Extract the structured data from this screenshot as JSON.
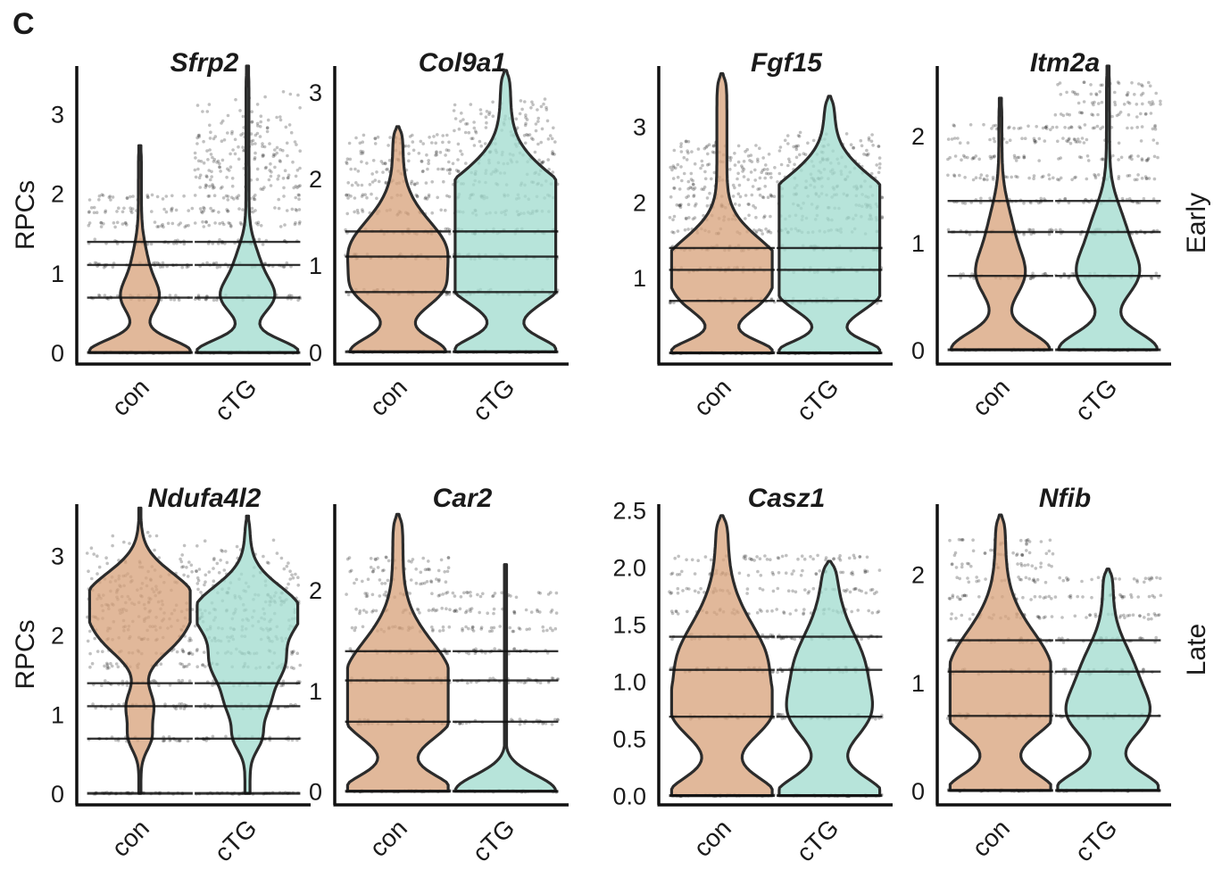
{
  "figure": {
    "panel_label": "C",
    "row_labels": [
      "Early",
      "Late"
    ],
    "ylabel": "RPCs",
    "group_colors": {
      "con": "#d9a47e",
      "cTG": "#a3dcd0"
    }
  },
  "chart_data": [
    {
      "type": "violin",
      "title": "Sfrp2",
      "row": "Early",
      "ylabel": "RPCs",
      "categories": [
        "con",
        "cTG"
      ],
      "ylim": [
        -0.1,
        3.6
      ],
      "yticks": [
        0,
        1,
        2,
        3
      ],
      "ytick_labels": [
        "0",
        "1",
        "2",
        "3"
      ],
      "series": [
        {
          "name": "con",
          "levels": [
            0,
            0.69,
            1.1,
            1.39,
            1.61,
            1.79,
            1.95
          ],
          "bulge_y": [
            0,
            0.69,
            1.1
          ],
          "bulge_w": [
            1.0,
            0.32,
            0.12
          ],
          "base_w": 0.03,
          "max": 2.6
        },
        {
          "name": "cTG",
          "levels": [
            0,
            0.69,
            1.1,
            1.39,
            1.61,
            1.79,
            1.95,
            2.08,
            2.2,
            2.3,
            2.4,
            2.48,
            2.56,
            2.64,
            2.71,
            2.77,
            2.83,
            2.89,
            2.94,
            3.0,
            3.04,
            3.09,
            3.14,
            3.18,
            3.22,
            3.26
          ],
          "bulge_y": [
            0,
            0.69,
            1.1
          ],
          "bulge_w": [
            1.0,
            0.45,
            0.2
          ],
          "base_w": 0.03,
          "max": 3.6
        }
      ]
    },
    {
      "type": "violin",
      "title": "Col9a1",
      "row": "Early",
      "ylabel": "",
      "categories": [
        "con",
        "cTG"
      ],
      "ylim": [
        -0.1,
        3.3
      ],
      "yticks": [
        0,
        1,
        2,
        3
      ],
      "ytick_labels": [
        "0",
        "1",
        "2",
        "3"
      ],
      "series": [
        {
          "name": "con",
          "levels": [
            0,
            0.69,
            1.1,
            1.39,
            1.61,
            1.79,
            1.95,
            2.08,
            2.2,
            2.3,
            2.4,
            2.48
          ],
          "bulge_y": [
            0,
            0.69,
            1.1,
            1.39
          ],
          "bulge_w": [
            0.85,
            0.6,
            0.55,
            0.4
          ],
          "base_w": 0.1,
          "max": 2.6
        },
        {
          "name": "cTG",
          "levels": [
            0,
            0.69,
            1.1,
            1.39,
            1.61,
            1.79,
            1.95,
            2.08,
            2.2,
            2.3,
            2.4,
            2.48,
            2.56,
            2.64,
            2.71,
            2.77,
            2.83,
            2.89
          ],
          "bulge_y": [
            0,
            0.69,
            1.1,
            1.39,
            1.79
          ],
          "bulge_w": [
            0.95,
            0.6,
            0.85,
            1.0,
            0.9
          ],
          "base_w": 0.1,
          "max": 3.25
        }
      ]
    },
    {
      "type": "violin",
      "title": "Fgf15",
      "row": "Early",
      "ylabel": "",
      "categories": [
        "con",
        "cTG"
      ],
      "ylim": [
        -0.1,
        3.8
      ],
      "yticks": [
        1,
        2,
        3
      ],
      "ytick_labels": [
        "1",
        "2",
        "3"
      ],
      "series": [
        {
          "name": "con",
          "levels": [
            0,
            0.69,
            1.1,
            1.39,
            1.61,
            1.79,
            1.95,
            2.08,
            2.2,
            2.3,
            2.4,
            2.48,
            2.56,
            2.64,
            2.71,
            2.77
          ],
          "bulge_y": [
            0,
            0.69,
            1.1,
            1.39
          ],
          "bulge_w": [
            0.95,
            0.5,
            0.65,
            0.5
          ],
          "base_w": 0.1,
          "max": 3.7
        },
        {
          "name": "cTG",
          "levels": [
            0,
            0.69,
            1.1,
            1.39,
            1.61,
            1.79,
            1.95,
            2.08,
            2.2,
            2.3,
            2.4,
            2.48,
            2.56,
            2.64,
            2.71,
            2.77,
            2.83,
            2.89
          ],
          "bulge_y": [
            0,
            0.69,
            1.1,
            1.61,
            2.08
          ],
          "bulge_w": [
            0.95,
            0.55,
            0.9,
            1.0,
            0.85
          ],
          "base_w": 0.1,
          "max": 3.4
        }
      ]
    },
    {
      "type": "violin",
      "title": "Itm2a",
      "row": "Early",
      "ylabel": "",
      "categories": [
        "con",
        "cTG"
      ],
      "ylim": [
        -0.1,
        2.65
      ],
      "yticks": [
        0,
        1,
        2
      ],
      "ytick_labels": [
        "0",
        "1",
        "2"
      ],
      "series": [
        {
          "name": "con",
          "levels": [
            0,
            0.69,
            1.1,
            1.39,
            1.61,
            1.79,
            1.95,
            2.08
          ],
          "bulge_y": [
            0,
            0.69,
            1.1
          ],
          "bulge_w": [
            0.95,
            0.4,
            0.2
          ],
          "base_w": 0.03,
          "max": 2.35
        },
        {
          "name": "cTG",
          "levels": [
            0,
            0.69,
            1.1,
            1.39,
            1.61,
            1.79,
            1.95,
            2.08,
            2.2,
            2.3,
            2.4,
            2.48
          ],
          "bulge_y": [
            0,
            0.69,
            1.1
          ],
          "bulge_w": [
            0.95,
            0.5,
            0.3
          ],
          "base_w": 0.03,
          "max": 2.65
        }
      ]
    },
    {
      "type": "violin",
      "title": "Ndufa4l2",
      "row": "Late",
      "ylabel": "RPCs",
      "categories": [
        "con",
        "cTG"
      ],
      "ylim": [
        -0.1,
        3.65
      ],
      "yticks": [
        0,
        1,
        2,
        3
      ],
      "ytick_labels": [
        "0",
        "1",
        "2",
        "3"
      ],
      "series": [
        {
          "name": "con",
          "levels": [
            0,
            0.69,
            1.1,
            1.39,
            1.61,
            1.79,
            1.95,
            2.08,
            2.2,
            2.3,
            2.4,
            2.48,
            2.56,
            2.64,
            2.71,
            2.77,
            2.83,
            2.89,
            2.94,
            3.0,
            3.04,
            3.09,
            3.14,
            3.18,
            3.22,
            3.26
          ],
          "bulge_y": [
            0.69,
            1.1,
            1.95,
            2.48
          ],
          "bulge_w": [
            0.18,
            0.25,
            0.55,
            1.0
          ],
          "base_w": 0.02,
          "max": 3.6
        },
        {
          "name": "cTG",
          "levels": [
            0,
            0.69,
            1.1,
            1.39,
            1.61,
            1.79,
            1.95,
            2.08,
            2.2,
            2.3,
            2.4,
            2.48,
            2.56,
            2.64,
            2.71,
            2.77,
            2.83,
            2.89,
            2.94,
            3.0,
            3.04,
            3.09,
            3.14,
            3.18
          ],
          "bulge_y": [
            0.69,
            1.1,
            1.61,
            2.3
          ],
          "bulge_w": [
            0.2,
            0.3,
            0.6,
            1.0
          ],
          "base_w": 0.05,
          "max": 3.5
        }
      ]
    },
    {
      "type": "violin",
      "title": "Car2",
      "row": "Late",
      "ylabel": "",
      "categories": [
        "con",
        "cTG"
      ],
      "ylim": [
        -0.1,
        2.85
      ],
      "yticks": [
        0,
        1,
        2
      ],
      "ytick_labels": [
        "0",
        "1",
        "2"
      ],
      "series": [
        {
          "name": "con",
          "levels": [
            0,
            0.69,
            1.1,
            1.39,
            1.61,
            1.79,
            1.95,
            2.08,
            2.2,
            2.3
          ],
          "bulge_y": [
            0,
            0.69,
            1.1,
            1.39
          ],
          "bulge_w": [
            1.0,
            0.75,
            0.6,
            0.4
          ],
          "base_w": 0.1,
          "max": 2.75
        },
        {
          "name": "cTG",
          "levels": [
            0,
            0.69,
            1.1,
            1.39,
            1.61,
            1.79,
            1.95
          ],
          "bulge_y": [
            0
          ],
          "bulge_w": [
            1.0
          ],
          "base_w": 0.0,
          "max": 2.25
        }
      ]
    },
    {
      "type": "violin",
      "title": "Casz1",
      "row": "Late",
      "ylabel": "",
      "categories": [
        "con",
        "cTG"
      ],
      "ylim": [
        -0.05,
        2.55
      ],
      "yticks": [
        0,
        0.5,
        1.0,
        1.5,
        2.0,
        2.5
      ],
      "ytick_labels": [
        "0.0",
        "0.5",
        "1.0",
        "1.5",
        "2.0",
        "2.5"
      ],
      "series": [
        {
          "name": "con",
          "levels": [
            0,
            0.69,
            1.1,
            1.39,
            1.61,
            1.79,
            1.95,
            2.08
          ],
          "bulge_y": [
            0,
            0.69,
            1.1,
            1.39
          ],
          "bulge_w": [
            0.95,
            0.7,
            0.5,
            0.35
          ],
          "base_w": 0.12,
          "max": 2.45
        },
        {
          "name": "cTG",
          "levels": [
            0,
            0.69,
            1.1,
            1.39,
            1.61,
            1.79,
            1.95,
            2.08
          ],
          "bulge_y": [
            0,
            0.69,
            1.1,
            1.39
          ],
          "bulge_w": [
            0.95,
            0.55,
            0.45,
            0.15
          ],
          "base_w": 0.12,
          "max": 2.05
        }
      ]
    },
    {
      "type": "violin",
      "title": "Nfib",
      "row": "Late",
      "ylabel": "",
      "categories": [
        "con",
        "cTG"
      ],
      "ylim": [
        -0.1,
        2.65
      ],
      "yticks": [
        0,
        1,
        2
      ],
      "ytick_labels": [
        "0",
        "1",
        "2"
      ],
      "series": [
        {
          "name": "con",
          "levels": [
            0,
            0.69,
            1.1,
            1.39,
            1.61,
            1.79,
            1.95,
            2.08,
            2.2,
            2.3
          ],
          "bulge_y": [
            0,
            0.69,
            1.1,
            1.39
          ],
          "bulge_w": [
            0.95,
            0.8,
            0.6,
            0.35
          ],
          "base_w": 0.1,
          "max": 2.55
        },
        {
          "name": "cTG",
          "levels": [
            0,
            0.69,
            1.1,
            1.39,
            1.61,
            1.79,
            1.95
          ],
          "bulge_y": [
            0,
            0.69,
            1.1
          ],
          "bulge_w": [
            0.95,
            0.6,
            0.4
          ],
          "base_w": 0.1,
          "max": 2.05
        }
      ]
    }
  ]
}
